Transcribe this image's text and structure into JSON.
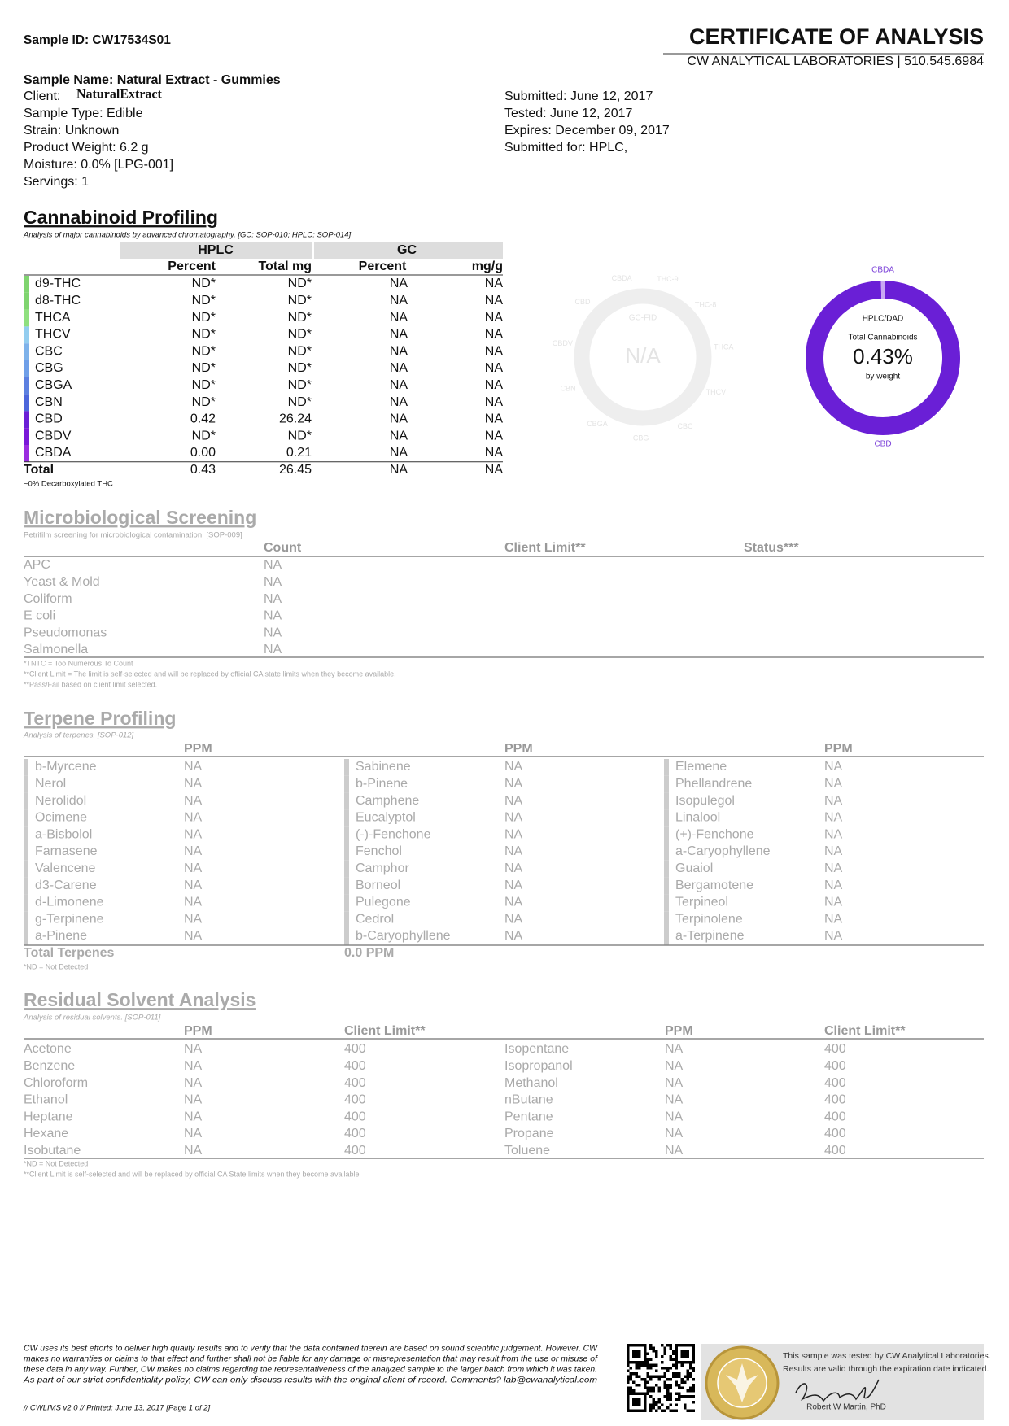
{
  "header": {
    "sample_id": "Sample ID: CW17534S01",
    "title": "CERTIFICATE OF ANALYSIS",
    "lab": "CW ANALYTICAL LABORATORIES | 510.545.6984"
  },
  "sample": {
    "name": "Sample Name: Natural Extract  - Gummies",
    "client_label": "Client:",
    "client": "NaturalExtract",
    "left": [
      "Sample Type: Edible",
      "Strain: Unknown",
      "Product Weight: 6.2 g",
      "Moisture: 0.0% [LPG-001]",
      "Servings: 1"
    ],
    "right": [
      "Submitted: June 12, 2017",
      "Tested: June 12, 2017",
      "Expires: December 09, 2017",
      "Submitted for: HPLC,"
    ]
  },
  "cannabinoids": {
    "title": "Cannabinoid Profiling",
    "subtitle": "Analysis of major cannabinoids by advanced chromatography. [GC: SOP-010; HPLC: SOP-014]",
    "groups": [
      "HPLC",
      "GC"
    ],
    "columns": [
      "Percent",
      "Total mg",
      "Percent",
      "mg/g"
    ],
    "rows": [
      [
        "d9-THC",
        "ND*",
        "ND*",
        "NA",
        "NA"
      ],
      [
        "d8-THC",
        "ND*",
        "ND*",
        "NA",
        "NA"
      ],
      [
        "THCA",
        "ND*",
        "ND*",
        "NA",
        "NA"
      ],
      [
        "THCV",
        "ND*",
        "ND*",
        "NA",
        "NA"
      ],
      [
        "CBC",
        "ND*",
        "ND*",
        "NA",
        "NA"
      ],
      [
        "CBG",
        "ND*",
        "ND*",
        "NA",
        "NA"
      ],
      [
        "CBGA",
        "ND*",
        "ND*",
        "NA",
        "NA"
      ],
      [
        "CBN",
        "ND*",
        "ND*",
        "NA",
        "NA"
      ],
      [
        "CBD",
        "0.42",
        "26.24",
        "NA",
        "NA"
      ],
      [
        "CBDV",
        "ND*",
        "ND*",
        "NA",
        "NA"
      ],
      [
        "CBDA",
        "0.00",
        "0.21",
        "NA",
        "NA"
      ]
    ],
    "colors": [
      "#7fd46f",
      "#7fd46f",
      "#8fe07f",
      "#93cdef",
      "#7eb2ea",
      "#6f9fe8",
      "#5c80e0",
      "#4c66db",
      "#6a1fd6",
      "#7a18d8",
      "#9b2de0"
    ],
    "total": [
      "Total",
      "0.43",
      "26.45",
      "NA",
      "NA"
    ],
    "note": "~0% Decarboxylated THC"
  },
  "gc_chart": {
    "labels": [
      "CBDA",
      "THC-9",
      "THC-8",
      "THCA",
      "THCV",
      "CBC",
      "CBG",
      "CBGA",
      "CBN",
      "CBDV",
      "CBD"
    ],
    "method": "GC-FID",
    "value": "N/A"
  },
  "hplc_chart": {
    "top_label": "CBDA",
    "bottom_label": "CBD",
    "method": "HPLC/DAD",
    "caption": "Total Cannabinoids",
    "value": "0.43%",
    "unit": "by weight",
    "colors": [
      "#6a1fd6",
      "#c9a8f3"
    ]
  },
  "micro": {
    "title": "Microbiological Screening",
    "subtitle": "Petrifilm screening for microbiological contamination. [SOP-009]",
    "columns": [
      "Count",
      "Client Limit**",
      "Status***"
    ],
    "rows": [
      [
        "APC",
        "NA"
      ],
      [
        "Yeast & Mold",
        "NA"
      ],
      [
        "Coliform",
        "NA"
      ],
      [
        "E coli",
        "NA"
      ],
      [
        "Pseudomonas",
        "NA"
      ],
      [
        "Salmonella",
        "NA"
      ]
    ],
    "notes": [
      "*TNTC = Too Numerous To Count",
      "**Client Limit = The limit is self-selected and will be replaced by official CA state limits when they become available.",
      "**Pass/Fail based on client limit selected."
    ]
  },
  "terpenes": {
    "title": "Terpene Profiling",
    "subtitle": "Analysis of terpenes. [SOP-012]",
    "column": "PPM",
    "groups": [
      [
        [
          "b-Myrcene",
          "NA"
        ],
        [
          "Nerol",
          "NA"
        ],
        [
          "Nerolidol",
          "NA"
        ],
        [
          "Ocimene",
          "NA"
        ],
        [
          "a-Bisbolol",
          "NA"
        ],
        [
          "Farnasene",
          "NA"
        ],
        [
          "Valencene",
          "NA"
        ],
        [
          "d3-Carene",
          "NA"
        ],
        [
          "d-Limonene",
          "NA"
        ],
        [
          "g-Terpinene",
          "NA"
        ],
        [
          "a-Pinene",
          "NA"
        ]
      ],
      [
        [
          "Sabinene",
          "NA"
        ],
        [
          "b-Pinene",
          "NA"
        ],
        [
          "Camphene",
          "NA"
        ],
        [
          "Eucalyptol",
          "NA"
        ],
        [
          "(-)-Fenchone",
          "NA"
        ],
        [
          "Fenchol",
          "NA"
        ],
        [
          "Camphor",
          "NA"
        ],
        [
          "Borneol",
          "NA"
        ],
        [
          "Pulegone",
          "NA"
        ],
        [
          "Cedrol",
          "NA"
        ],
        [
          "b-Caryophyllene",
          "NA"
        ]
      ],
      [
        [
          "Elemene",
          "NA"
        ],
        [
          "Phellandrene",
          "NA"
        ],
        [
          "Isopulegol",
          "NA"
        ],
        [
          "Linalool",
          "NA"
        ],
        [
          "(+)-Fenchone",
          "NA"
        ],
        [
          "a-Caryophyllene",
          "NA"
        ],
        [
          "Guaiol",
          "NA"
        ],
        [
          "Bergamotene",
          "NA"
        ],
        [
          "Terpineol",
          "NA"
        ],
        [
          "Terpinolene",
          "NA"
        ],
        [
          "a-Terpinene",
          "NA"
        ]
      ]
    ],
    "total_label": "Total Terpenes",
    "total_value": "0.0 PPM",
    "note": "*ND = Not Detected"
  },
  "solvents": {
    "title": "Residual Solvent Analysis",
    "subtitle": "Analysis of residual solvents. [SOP-011]",
    "columns": [
      "PPM",
      "Client Limit**",
      "PPM",
      "Client Limit**"
    ],
    "rows": [
      [
        "Acetone",
        "NA",
        "400",
        "Isopentane",
        "NA",
        "400"
      ],
      [
        "Benzene",
        "NA",
        "400",
        "Isopropanol",
        "NA",
        "400"
      ],
      [
        "Chloroform",
        "NA",
        "400",
        "Methanol",
        "NA",
        "400"
      ],
      [
        "Ethanol",
        "NA",
        "400",
        "nButane",
        "NA",
        "400"
      ],
      [
        "Heptane",
        "NA",
        "400",
        "Pentane",
        "NA",
        "400"
      ],
      [
        "Hexane",
        "NA",
        "400",
        "Propane",
        "NA",
        "400"
      ],
      [
        "Isobutane",
        "NA",
        "400",
        "Toluene",
        "NA",
        "400"
      ]
    ],
    "notes": [
      "*ND = Not Detected",
      "**Client Limit is self-selected and will be replaced by official CA State limits when they become available"
    ]
  },
  "footer": {
    "disclaimer": [
      "CW uses its best efforts to deliver high quality results and to verify that the data contained therein are based on sound scientific judgement. However, CW",
      "makes no warranties or claims to that effect and further shall not be liable for any damage or misrepresentation that may result from the use or misuse of",
      "these data in any way. Further, CW makes no claims regarding the representativeness of the analyzed sample to the larger batch from which it was taken.",
      "As part of our strict confidentiality policy, CW can only discuss results with the original client of record. Comments? lab@cwanalytical.com"
    ],
    "printed": "// CWLIMS v2.0 // Printed: June 13, 2017 [Page 1 of 2]",
    "badge": [
      "This sample was tested by CW Analytical Laboratories.",
      "Results are valid through the expiration date indicated."
    ],
    "signer": "Robert W Martin, PhD"
  }
}
